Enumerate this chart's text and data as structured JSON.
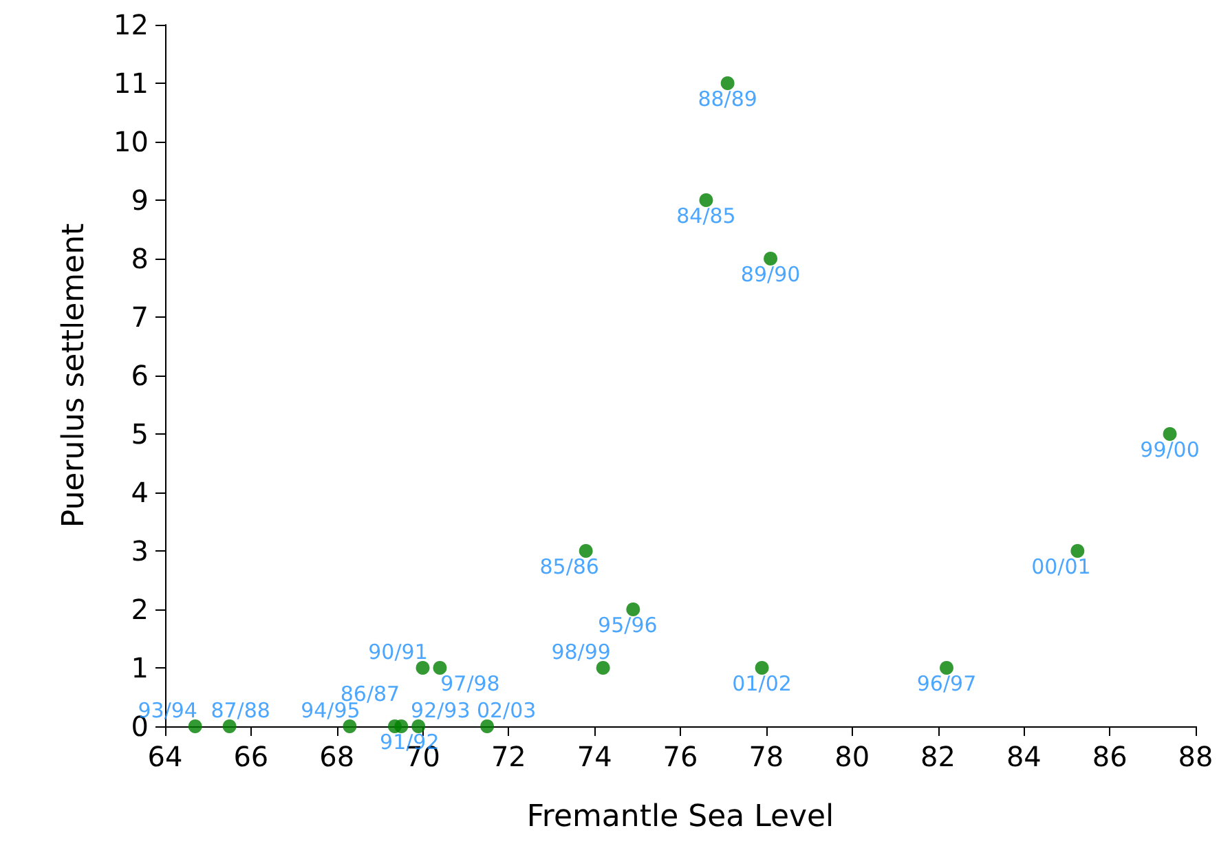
{
  "chart_data": {
    "type": "scatter",
    "xlabel": "Fremantle Sea Level",
    "ylabel": "Puerulus settlement",
    "x": [
      77.1,
      76.6,
      78.1,
      87.4,
      85.25,
      73.8,
      74.9,
      74.2,
      77.9,
      82.2,
      70.0,
      70.4,
      64.7,
      65.5,
      68.3,
      69.35,
      69.5,
      69.9,
      71.5
    ],
    "series": [
      {
        "color": "#008000",
        "values": [
          11,
          9,
          8,
          5,
          3,
          3,
          2,
          1,
          1,
          1,
          1,
          1,
          0,
          0,
          0,
          0,
          0,
          0,
          0
        ]
      }
    ],
    "annotations": [
      {
        "text": "88/89",
        "x": 77.1,
        "y": 11
      },
      {
        "text": "84/85",
        "x": 76.6,
        "y": 9
      },
      {
        "text": "89/90",
        "x": 78.1,
        "y": 8
      },
      {
        "text": "99/00",
        "x": 87.4,
        "y": 5
      },
      {
        "text": "00/01",
        "x": 85.25,
        "y": 3
      },
      {
        "text": "85/86",
        "x": 73.8,
        "y": 3
      },
      {
        "text": "95/96",
        "x": 74.9,
        "y": 2
      },
      {
        "text": "98/99",
        "x": 74.2,
        "y": 1
      },
      {
        "text": "01/02",
        "x": 77.9,
        "y": 1
      },
      {
        "text": "96/97",
        "x": 82.2,
        "y": 1
      },
      {
        "text": "90/91",
        "x": 70.0,
        "y": 1
      },
      {
        "text": "97/98",
        "x": 70.4,
        "y": 1
      },
      {
        "text": "93/94",
        "x": 64.7,
        "y": 0
      },
      {
        "text": "87/88",
        "x": 65.5,
        "y": 0
      },
      {
        "text": "94/95",
        "x": 68.3,
        "y": 0
      },
      {
        "text": "86/87",
        "x": 69.35,
        "y": 0
      },
      {
        "text": "91/92",
        "x": 69.5,
        "y": 0
      },
      {
        "text": "92/93",
        "x": 69.9,
        "y": 0
      },
      {
        "text": "02/03",
        "x": 71.5,
        "y": 0
      }
    ],
    "xlim": [
      64,
      88
    ],
    "xticks": [
      64,
      66,
      68,
      70,
      72,
      74,
      76,
      78,
      80,
      82,
      84,
      86,
      88
    ],
    "ylim": [
      0,
      12
    ],
    "yticks": [
      0,
      1,
      2,
      3,
      4,
      5,
      6,
      7,
      8,
      9,
      10,
      11,
      12
    ],
    "grid": false,
    "marker": "circle"
  }
}
